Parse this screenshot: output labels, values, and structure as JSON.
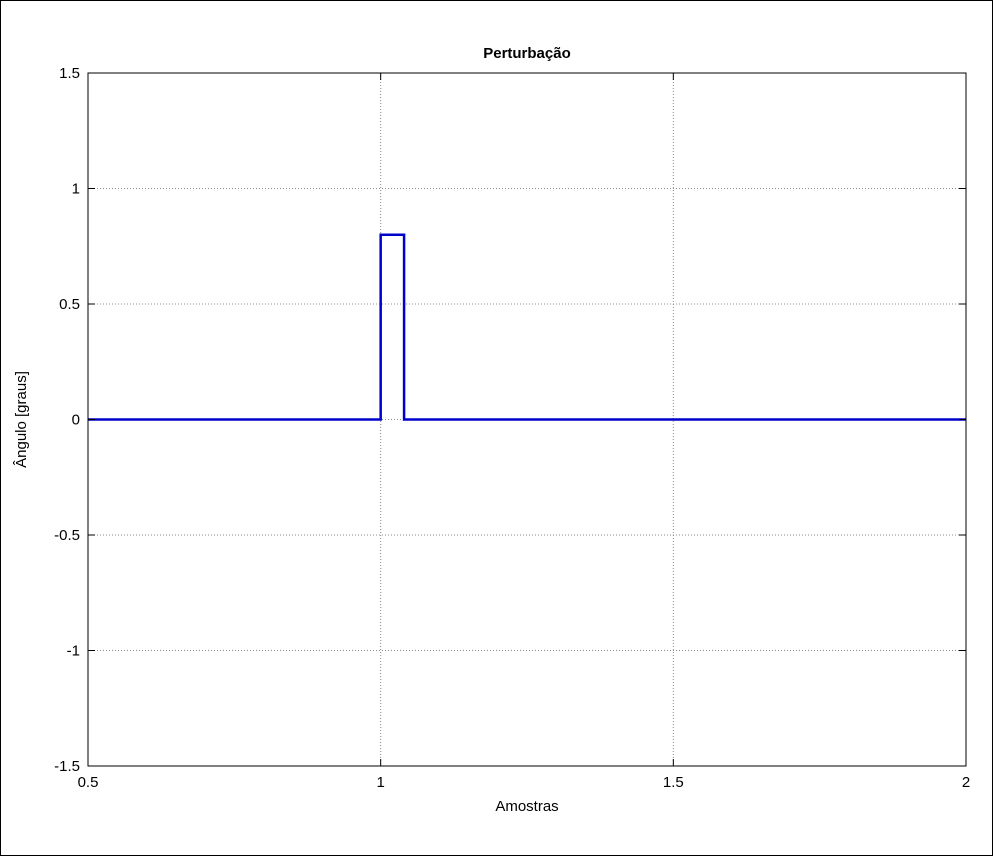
{
  "chart_data": {
    "type": "line",
    "title": "Perturbação",
    "xlabel": "Amostras",
    "ylabel": "Ângulo [graus]",
    "xlim": [
      0.5,
      2
    ],
    "ylim": [
      -1.5,
      1.5
    ],
    "xticks": [
      0.5,
      1,
      1.5,
      2
    ],
    "xtick_labels": [
      "0.5",
      "1",
      "1.5",
      "2"
    ],
    "yticks": [
      -1.5,
      -1,
      -0.5,
      0,
      0.5,
      1,
      1.5
    ],
    "ytick_labels": [
      "-1.5",
      "-1",
      "-0.5",
      "0",
      "0.5",
      "1",
      "1.5"
    ],
    "grid": true,
    "legend": "none",
    "series": [
      {
        "color": "#0000cc",
        "x": [
          0.5,
          1.0,
          1.0,
          1.04,
          1.04,
          2.0
        ],
        "y": [
          0,
          0,
          0.8,
          0.8,
          0,
          0
        ]
      }
    ]
  }
}
